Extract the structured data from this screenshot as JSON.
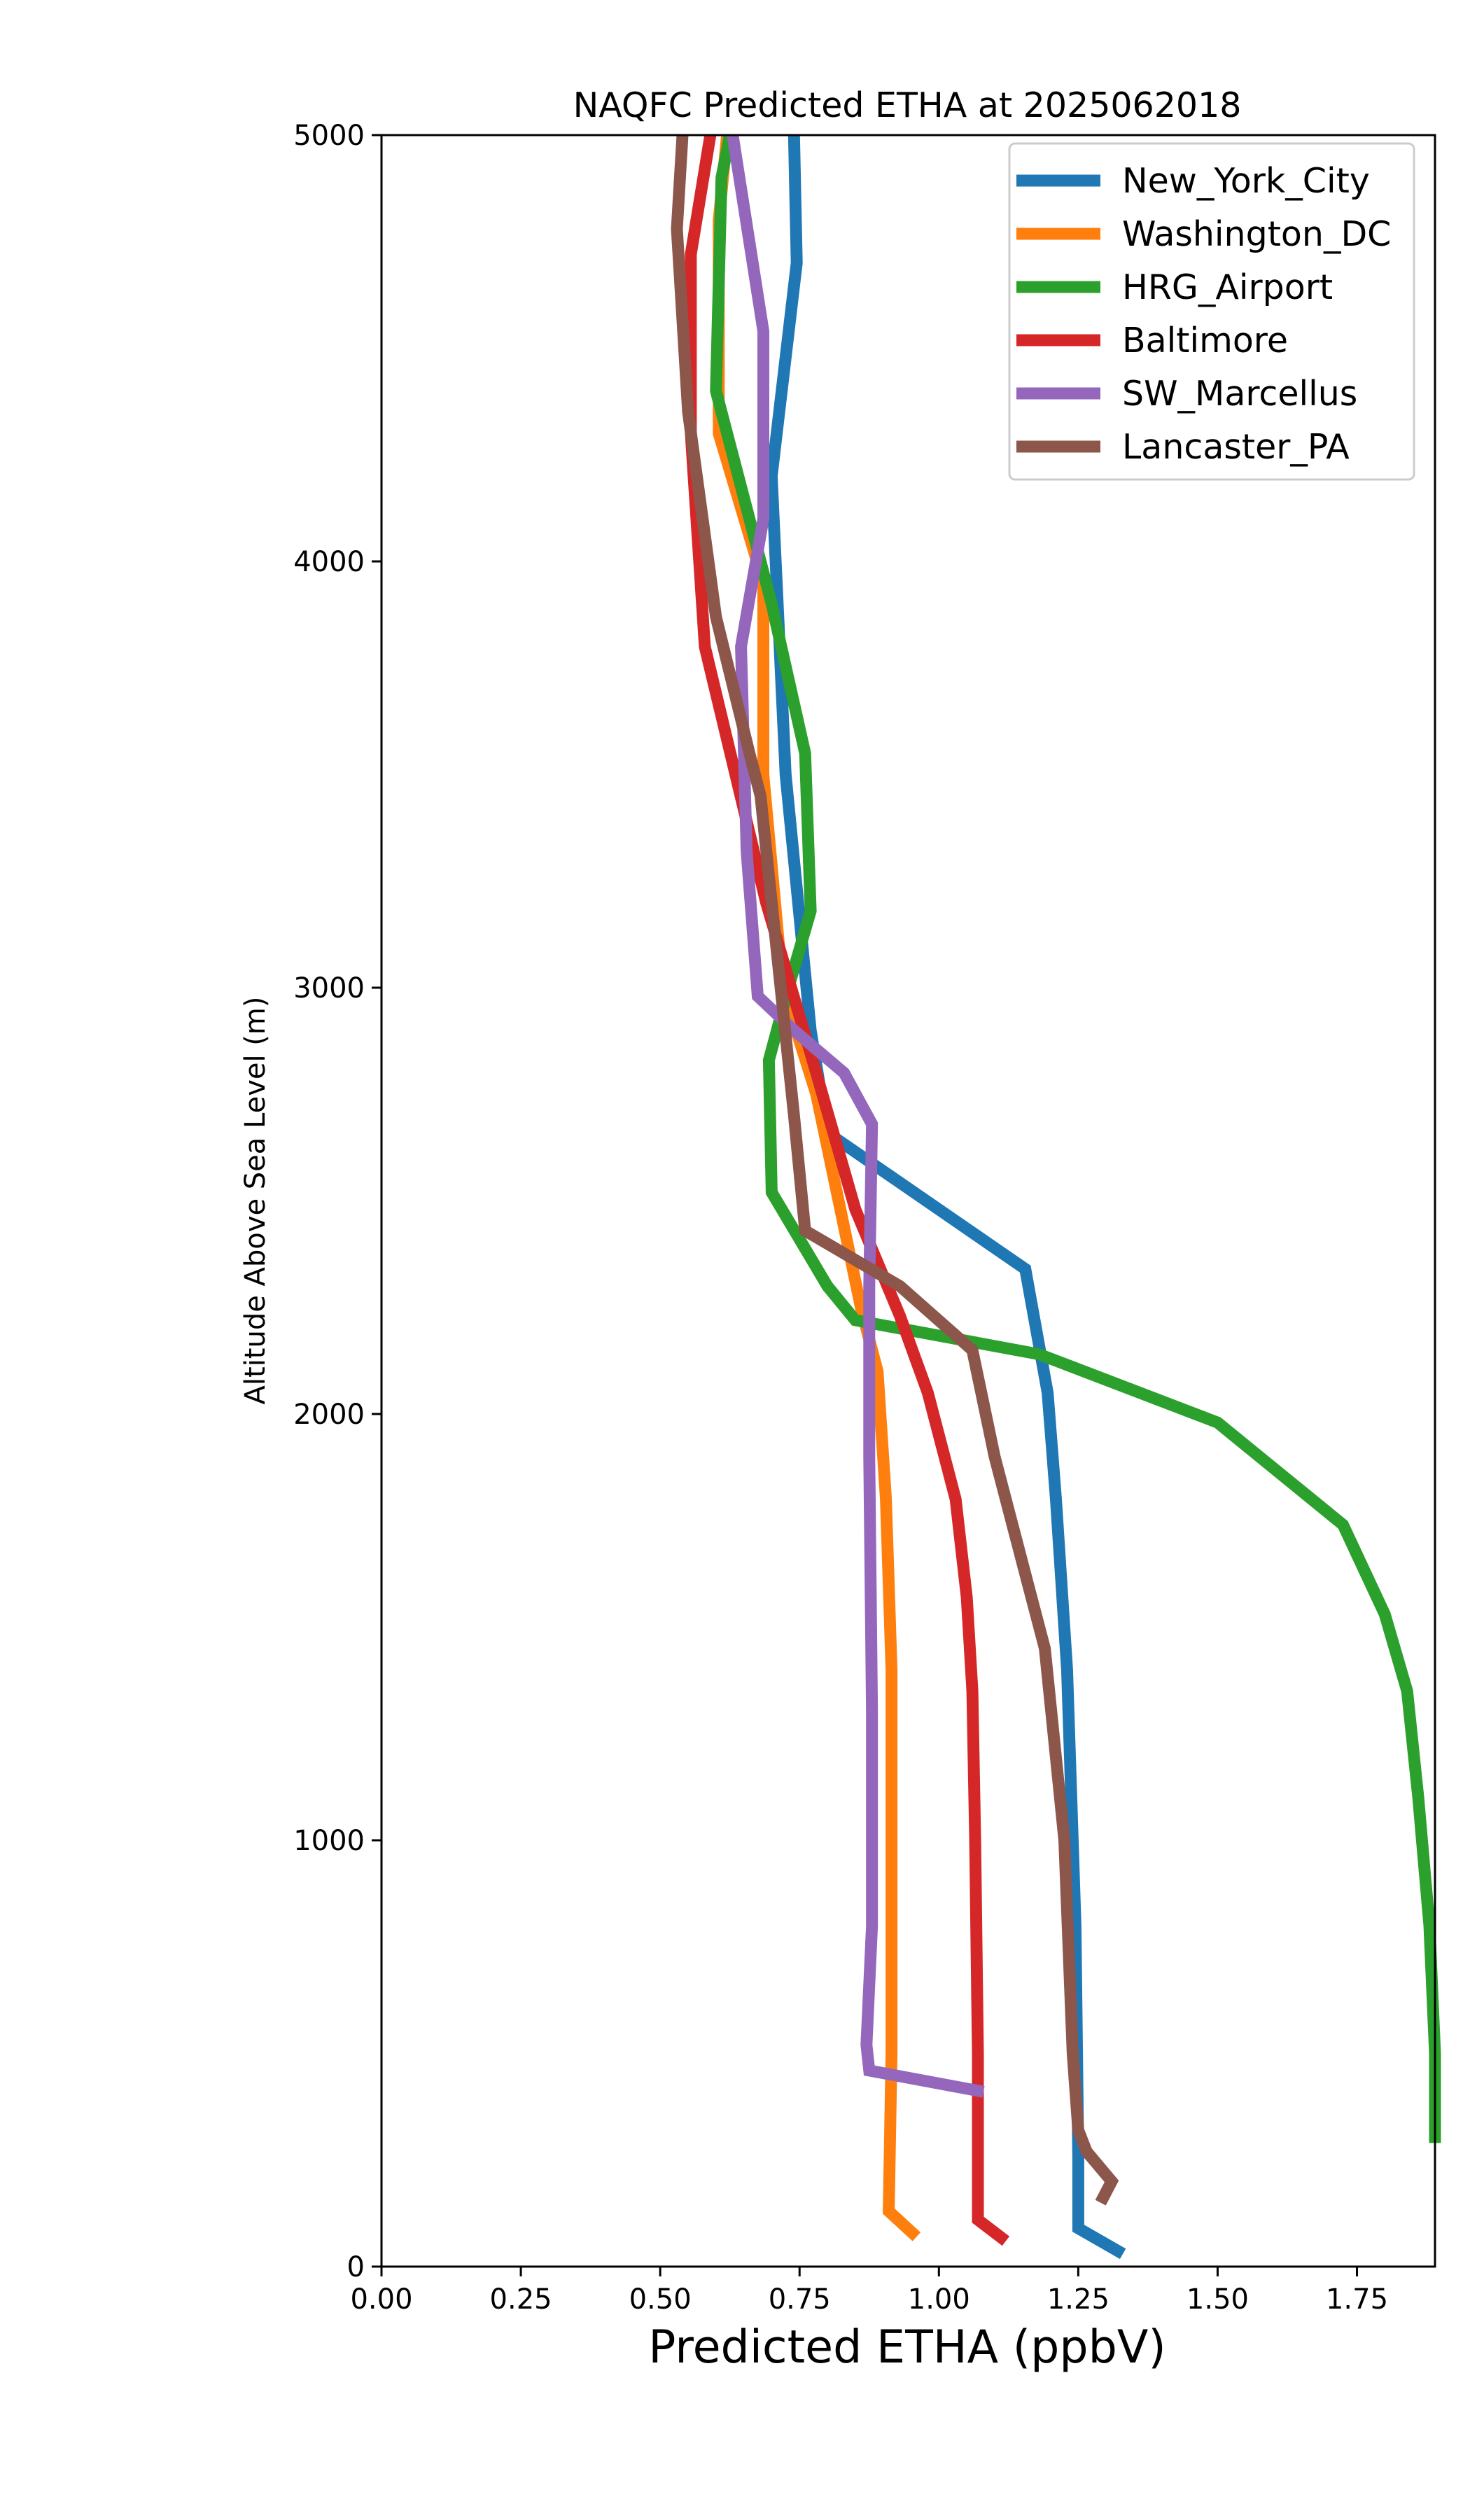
{
  "chart_data": {
    "type": "line",
    "title": "NAQFC Predicted ETHA at 2025062018",
    "xlabel": "Predicted ETHA (ppbV)",
    "ylabel": "Altitude Above Sea Level (m)",
    "xlim": [
      0,
      1.89
    ],
    "ylim": [
      0,
      5000
    ],
    "x_ticks": [
      "0.00",
      "0.25",
      "0.50",
      "0.75",
      "1.00",
      "1.25",
      "1.50",
      "1.75"
    ],
    "y_ticks": [
      "0",
      "1000",
      "2000",
      "3000",
      "4000",
      "5000"
    ],
    "grid": false,
    "legend_position": "top-right",
    "series": [
      {
        "name": "New_York_City",
        "color": "#1f77b4",
        "points": [
          [
            1.33,
            30
          ],
          [
            1.25,
            90
          ],
          [
            1.25,
            250
          ],
          [
            1.245,
            800
          ],
          [
            1.23,
            1400
          ],
          [
            1.21,
            1800
          ],
          [
            1.195,
            2050
          ],
          [
            1.155,
            2340
          ],
          [
            0.8,
            2660
          ],
          [
            0.77,
            2900
          ],
          [
            0.725,
            3500
          ],
          [
            0.7,
            4200
          ],
          [
            0.745,
            4700
          ],
          [
            0.74,
            5000
          ]
        ]
      },
      {
        "name": "Washington_DC",
        "color": "#ff7f0e",
        "points": [
          [
            0.96,
            70
          ],
          [
            0.91,
            130
          ],
          [
            0.915,
            500
          ],
          [
            0.915,
            1400
          ],
          [
            0.905,
            1800
          ],
          [
            0.89,
            2100
          ],
          [
            0.86,
            2250
          ],
          [
            0.82,
            2500
          ],
          [
            0.78,
            2750
          ],
          [
            0.72,
            3000
          ],
          [
            0.685,
            3500
          ],
          [
            0.685,
            3950
          ],
          [
            0.605,
            4300
          ],
          [
            0.605,
            4800
          ],
          [
            0.62,
            5000
          ]
        ]
      },
      {
        "name": "HRG_Airport",
        "color": "#2ca02c",
        "points": [
          [
            1.89,
            290
          ],
          [
            1.89,
            500
          ],
          [
            1.88,
            800
          ],
          [
            1.86,
            1100
          ],
          [
            1.84,
            1350
          ],
          [
            1.8,
            1530
          ],
          [
            1.725,
            1740
          ],
          [
            1.5,
            1980
          ],
          [
            1.18,
            2140
          ],
          [
            0.85,
            2220
          ],
          [
            0.8,
            2300
          ],
          [
            0.7,
            2520
          ],
          [
            0.695,
            2830
          ],
          [
            0.73,
            3000
          ],
          [
            0.77,
            3180
          ],
          [
            0.76,
            3550
          ],
          [
            0.7,
            3900
          ],
          [
            0.6,
            4400
          ],
          [
            0.61,
            4900
          ],
          [
            0.625,
            5000
          ]
        ]
      },
      {
        "name": "Baltimore",
        "color": "#d62728",
        "points": [
          [
            1.12,
            60
          ],
          [
            1.07,
            110
          ],
          [
            1.07,
            170
          ],
          [
            1.07,
            500
          ],
          [
            1.065,
            1000
          ],
          [
            1.06,
            1350
          ],
          [
            1.05,
            1570
          ],
          [
            1.03,
            1800
          ],
          [
            0.98,
            2050
          ],
          [
            0.93,
            2230
          ],
          [
            0.85,
            2480
          ],
          [
            0.78,
            2800
          ],
          [
            0.69,
            3200
          ],
          [
            0.58,
            3800
          ],
          [
            0.555,
            4300
          ],
          [
            0.555,
            4720
          ],
          [
            0.59,
            5000
          ]
        ]
      },
      {
        "name": "SW_Marcellus",
        "color": "#9467bd",
        "points": [
          [
            1.08,
            410
          ],
          [
            0.875,
            460
          ],
          [
            0.87,
            520
          ],
          [
            0.88,
            800
          ],
          [
            0.88,
            1300
          ],
          [
            0.875,
            1900
          ],
          [
            0.875,
            2300
          ],
          [
            0.88,
            2680
          ],
          [
            0.83,
            2800
          ],
          [
            0.74,
            2900
          ],
          [
            0.675,
            2980
          ],
          [
            0.655,
            3320
          ],
          [
            0.645,
            3800
          ],
          [
            0.685,
            4100
          ],
          [
            0.685,
            4540
          ],
          [
            0.63,
            5000
          ]
        ]
      },
      {
        "name": "Lancaster_PA",
        "color": "#8c564b",
        "points": [
          [
            1.29,
            150
          ],
          [
            1.31,
            200
          ],
          [
            1.265,
            270
          ],
          [
            1.25,
            320
          ],
          [
            1.24,
            500
          ],
          [
            1.225,
            1000
          ],
          [
            1.19,
            1450
          ],
          [
            1.15,
            1650
          ],
          [
            1.1,
            1900
          ],
          [
            1.06,
            2150
          ],
          [
            0.93,
            2300
          ],
          [
            0.76,
            2430
          ],
          [
            0.74,
            2700
          ],
          [
            0.7,
            3200
          ],
          [
            0.68,
            3450
          ],
          [
            0.66,
            3550
          ],
          [
            0.6,
            3870
          ],
          [
            0.55,
            4350
          ],
          [
            0.53,
            4780
          ],
          [
            0.54,
            5000
          ]
        ]
      }
    ]
  }
}
